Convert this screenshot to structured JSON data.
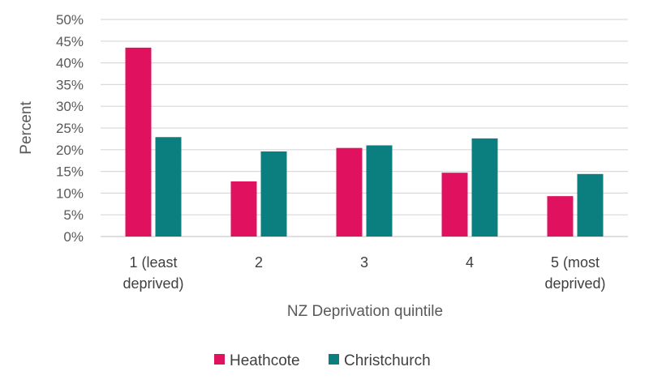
{
  "chart_data": {
    "type": "bar",
    "title": "",
    "xlabel": "NZ Deprivation quintile",
    "ylabel": "Percent",
    "categories": [
      "1 (least deprived)",
      "2",
      "3",
      "4",
      "5 (most deprived)"
    ],
    "category_lines": [
      [
        "1 (least",
        "deprived)"
      ],
      [
        "2"
      ],
      [
        "3"
      ],
      [
        "4"
      ],
      [
        "5 (most",
        "deprived)"
      ]
    ],
    "series": [
      {
        "name": "Heathcote",
        "values": [
          43.5,
          12.7,
          20.4,
          14.7,
          9.3
        ]
      },
      {
        "name": "Christchurch",
        "values": [
          22.9,
          19.6,
          21.0,
          22.6,
          14.4
        ]
      }
    ],
    "ylim": [
      0,
      50
    ],
    "yticks": [
      0,
      5,
      10,
      15,
      20,
      25,
      30,
      35,
      40,
      45,
      50
    ],
    "ytick_labels": [
      "0%",
      "5%",
      "10%",
      "15%",
      "20%",
      "25%",
      "30%",
      "35%",
      "40%",
      "45%",
      "50%"
    ],
    "grid": true,
    "legend_position": "bottom",
    "colors": {
      "Heathcote": "#E0115F",
      "Christchurch": "#0B7F80",
      "grid": "#D9D9D9"
    }
  }
}
